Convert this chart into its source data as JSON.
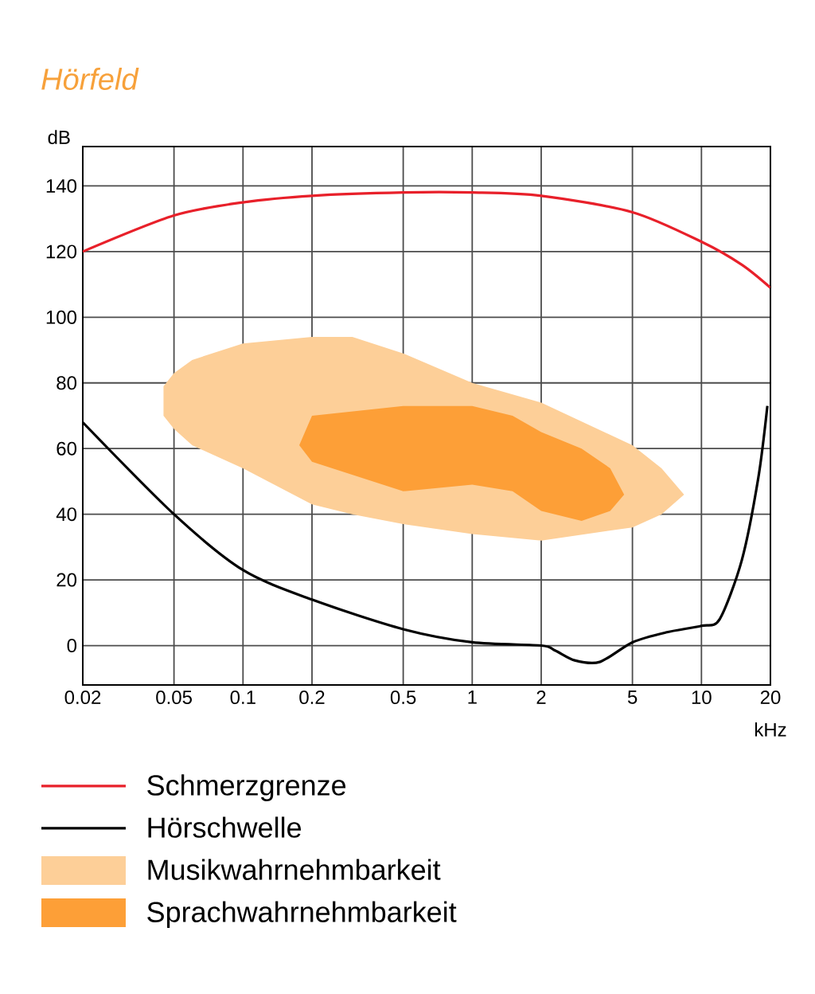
{
  "chart_data": {
    "type": "line",
    "title": "Hörfeld",
    "xlabel": "kHz",
    "ylabel": "dB",
    "log": "x",
    "grid": true,
    "legend": "bottom",
    "xlim": [
      0.02,
      20
    ],
    "ylim": [
      -12,
      152
    ],
    "xticks": [
      0.02,
      0.05,
      0.1,
      0.2,
      0.5,
      1,
      2,
      5,
      10,
      20
    ],
    "yticks": [
      0,
      20,
      40,
      60,
      80,
      100,
      120,
      140
    ],
    "series": [
      {
        "name": "Schmerzgrenze",
        "color": "#e8202a",
        "x": [
          0.02,
          0.05,
          0.1,
          0.2,
          0.5,
          1,
          2,
          5,
          10,
          15,
          20
        ],
        "values": [
          120,
          131,
          135,
          137,
          138,
          138,
          137,
          132,
          123,
          116,
          109
        ]
      },
      {
        "name": "Hörschwelle",
        "color": "#000000",
        "x": [
          0.02,
          0.05,
          0.1,
          0.2,
          0.5,
          1,
          2,
          2.3,
          2.8,
          3.6,
          5,
          7,
          10,
          12,
          15,
          17.7,
          19.4
        ],
        "values": [
          68,
          40,
          23,
          14,
          5,
          1,
          0,
          -1.5,
          -4.5,
          -5,
          1,
          4,
          6,
          8,
          26,
          51,
          73
        ]
      },
      {
        "name": "Musikwahrnehmbarkeit",
        "type": "area",
        "color": "#fdcf98",
        "x": [
          0.045,
          0.05,
          0.06,
          0.1,
          0.2,
          0.3,
          0.5,
          1,
          2,
          5,
          6.7,
          8.4,
          6.7,
          5,
          2,
          1,
          0.5,
          0.3,
          0.2,
          0.1,
          0.06,
          0.05,
          0.045
        ],
        "values": [
          79,
          83,
          87,
          92,
          94,
          94,
          89,
          80,
          74,
          61,
          54,
          46,
          40,
          36,
          32,
          34,
          37,
          40,
          43,
          54,
          61,
          66,
          70
        ]
      },
      {
        "name": "Sprachwahrnehmbarkeit",
        "type": "area",
        "color": "#fd9f37",
        "x": [
          0.176,
          0.2,
          0.5,
          1,
          1.5,
          2,
          3,
          4,
          4.6,
          4,
          3,
          2,
          1.5,
          1,
          0.5,
          0.2
        ],
        "values": [
          61,
          70,
          73,
          73,
          70,
          65,
          60,
          54,
          46,
          41,
          38,
          41,
          47,
          49,
          47,
          56
        ]
      }
    ]
  }
}
